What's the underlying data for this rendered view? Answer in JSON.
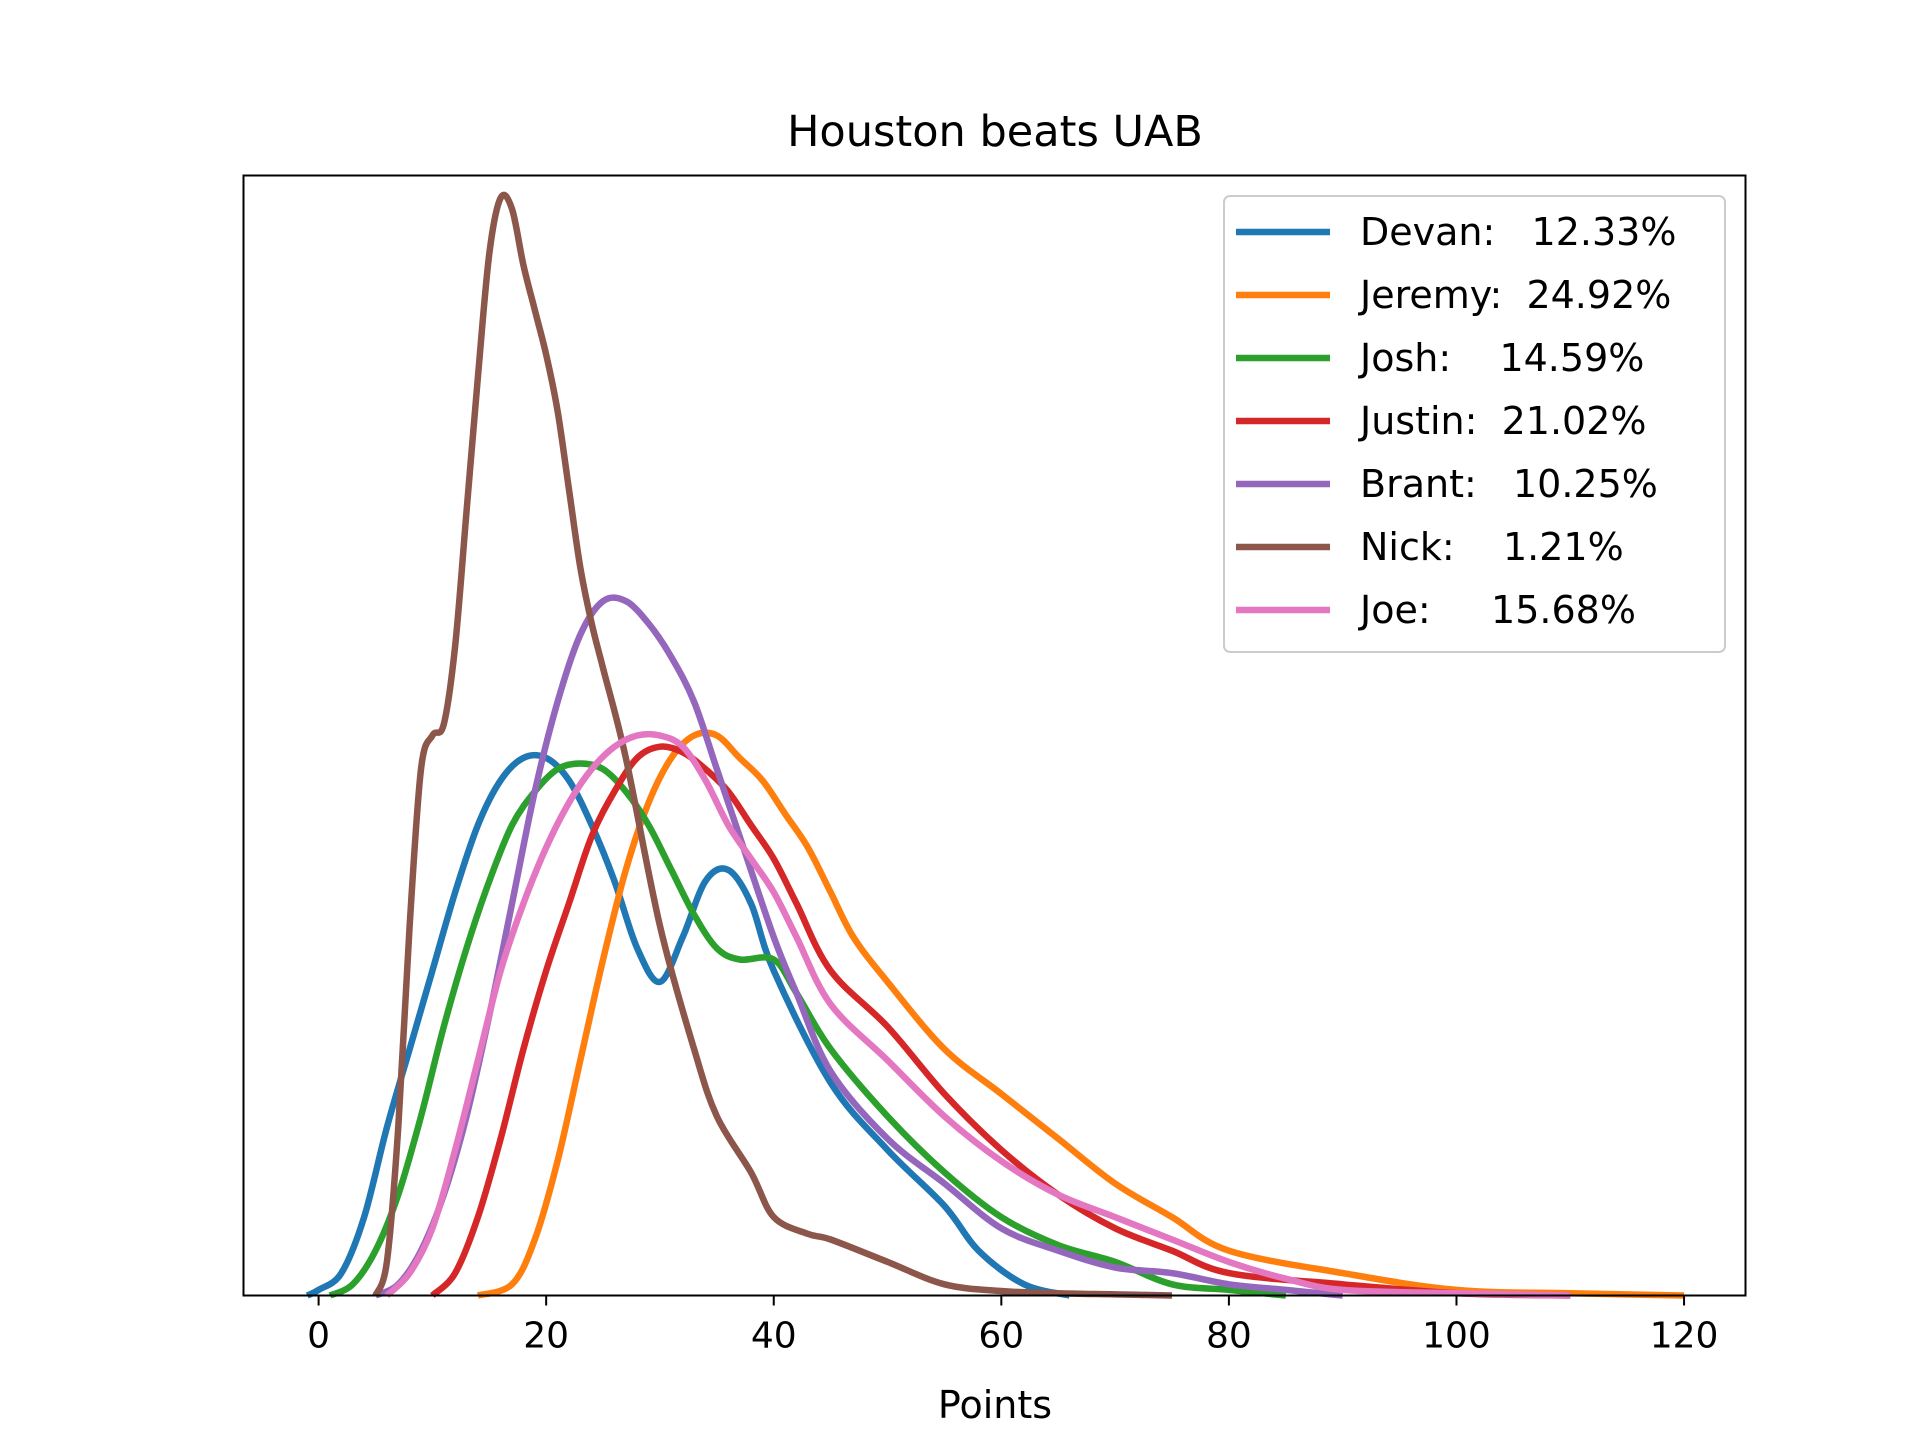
{
  "chart_data": {
    "type": "line",
    "title": "Houston beats UAB",
    "xlabel": "Points",
    "ylabel": "",
    "xlim": [
      -6.6,
      125.4
    ],
    "ylim": [
      0,
      1.0
    ],
    "xticks": [
      0,
      20,
      40,
      60,
      80,
      100,
      120
    ],
    "yticks_shown": false,
    "legend_position": "upper right",
    "series": [
      {
        "name": "Devan:   12.33%",
        "color": "#1f77b4",
        "x": [
          -1,
          0,
          2,
          4,
          6,
          8,
          10,
          12,
          14,
          16,
          18,
          20,
          22,
          24,
          26,
          28,
          30,
          32,
          34,
          36,
          38,
          40,
          45,
          50,
          55,
          58,
          62,
          66
        ],
        "y": [
          0.0,
          0.005,
          0.02,
          0.07,
          0.15,
          0.22,
          0.29,
          0.36,
          0.42,
          0.46,
          0.48,
          0.48,
          0.46,
          0.42,
          0.37,
          0.31,
          0.28,
          0.32,
          0.37,
          0.38,
          0.35,
          0.29,
          0.19,
          0.13,
          0.08,
          0.04,
          0.01,
          0.0
        ]
      },
      {
        "name": "Jeremy:  24.92%",
        "color": "#ff7f0e",
        "x": [
          14,
          17,
          19,
          21,
          23,
          25,
          27,
          29,
          31,
          33,
          35,
          37,
          39,
          41,
          43,
          45,
          47,
          50,
          55,
          60,
          65,
          70,
          75,
          80,
          90,
          100,
          110,
          120
        ],
        "y": [
          0.0,
          0.01,
          0.05,
          0.12,
          0.21,
          0.3,
          0.38,
          0.44,
          0.48,
          0.5,
          0.5,
          0.48,
          0.46,
          0.43,
          0.4,
          0.36,
          0.32,
          0.28,
          0.22,
          0.18,
          0.14,
          0.1,
          0.07,
          0.04,
          0.02,
          0.005,
          0.002,
          0.0
        ]
      },
      {
        "name": "Josh:    14.59%",
        "color": "#2ca02c",
        "x": [
          1,
          3,
          5,
          7,
          9,
          11,
          13,
          15,
          17,
          19,
          21,
          23,
          25,
          27,
          29,
          31,
          33,
          35,
          37,
          40,
          42,
          45,
          50,
          55,
          60,
          65,
          70,
          75,
          80,
          85
        ],
        "y": [
          0.0,
          0.01,
          0.04,
          0.09,
          0.16,
          0.24,
          0.31,
          0.37,
          0.42,
          0.45,
          0.47,
          0.475,
          0.47,
          0.45,
          0.42,
          0.38,
          0.34,
          0.31,
          0.3,
          0.3,
          0.27,
          0.22,
          0.16,
          0.11,
          0.07,
          0.045,
          0.03,
          0.01,
          0.005,
          0.0
        ]
      },
      {
        "name": "Justin:  21.02%",
        "color": "#d62728",
        "x": [
          10,
          12,
          14,
          16,
          18,
          20,
          22,
          24,
          26,
          28,
          30,
          32,
          34,
          36,
          38,
          40,
          42,
          45,
          50,
          55,
          60,
          65,
          70,
          75,
          80,
          90,
          100,
          110
        ],
        "y": [
          0.0,
          0.02,
          0.07,
          0.14,
          0.22,
          0.29,
          0.35,
          0.41,
          0.45,
          0.48,
          0.49,
          0.485,
          0.47,
          0.45,
          0.42,
          0.39,
          0.35,
          0.29,
          0.24,
          0.18,
          0.13,
          0.09,
          0.06,
          0.04,
          0.02,
          0.01,
          0.002,
          0.0
        ]
      },
      {
        "name": "Brant:   10.25%",
        "color": "#9467bd",
        "x": [
          5,
          7,
          9,
          11,
          13,
          15,
          17,
          19,
          21,
          23,
          25,
          27,
          29,
          31,
          33,
          35,
          37,
          40,
          42,
          45,
          50,
          55,
          60,
          65,
          70,
          75,
          80,
          85,
          90
        ],
        "y": [
          0.0,
          0.01,
          0.04,
          0.09,
          0.16,
          0.25,
          0.35,
          0.45,
          0.53,
          0.59,
          0.62,
          0.62,
          0.6,
          0.57,
          0.53,
          0.47,
          0.41,
          0.32,
          0.27,
          0.2,
          0.14,
          0.1,
          0.06,
          0.04,
          0.025,
          0.02,
          0.01,
          0.005,
          0.0
        ]
      },
      {
        "name": "Nick:    1.21%",
        "color": "#8c564b",
        "x": [
          5,
          6,
          7,
          8,
          9,
          10,
          11,
          12,
          13,
          14,
          15,
          16,
          17,
          18,
          19,
          20,
          21,
          22,
          23,
          24,
          25,
          27,
          30,
          33,
          35,
          38,
          40,
          43,
          45,
          50,
          55,
          60,
          65,
          70,
          75
        ],
        "y": [
          0.0,
          0.03,
          0.15,
          0.33,
          0.47,
          0.5,
          0.51,
          0.58,
          0.7,
          0.82,
          0.93,
          0.98,
          0.97,
          0.92,
          0.88,
          0.84,
          0.79,
          0.72,
          0.65,
          0.6,
          0.56,
          0.48,
          0.33,
          0.22,
          0.16,
          0.11,
          0.07,
          0.055,
          0.05,
          0.03,
          0.01,
          0.004,
          0.002,
          0.001,
          0.0
        ]
      },
      {
        "name": "Joe:     15.68%",
        "color": "#e377c2",
        "x": [
          6,
          8,
          10,
          12,
          14,
          16,
          18,
          20,
          22,
          24,
          26,
          28,
          30,
          32,
          34,
          36,
          38,
          40,
          42,
          45,
          50,
          55,
          60,
          65,
          70,
          75,
          80,
          85,
          90,
          100,
          110
        ],
        "y": [
          0.0,
          0.02,
          0.06,
          0.13,
          0.21,
          0.29,
          0.35,
          0.4,
          0.44,
          0.47,
          0.49,
          0.5,
          0.5,
          0.49,
          0.46,
          0.42,
          0.39,
          0.36,
          0.32,
          0.26,
          0.21,
          0.16,
          0.12,
          0.09,
          0.07,
          0.05,
          0.03,
          0.015,
          0.005,
          0.002,
          0.0
        ]
      }
    ]
  }
}
